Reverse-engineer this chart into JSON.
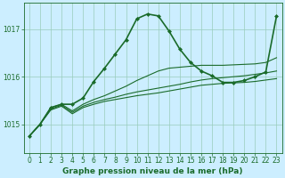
{
  "bg_color": "#cceeff",
  "grid_color": "#99ccbb",
  "line_color": "#1a6b2a",
  "xlabel": "Graphe pression niveau de la mer (hPa)",
  "xlabel_fontsize": 6.5,
  "tick_fontsize": 5.5,
  "xlim": [
    -0.5,
    23.5
  ],
  "ylim": [
    1014.4,
    1017.55
  ],
  "yticks": [
    1015,
    1016,
    1017
  ],
  "xticks": [
    0,
    1,
    2,
    3,
    4,
    5,
    6,
    7,
    8,
    9,
    10,
    11,
    12,
    13,
    14,
    15,
    16,
    17,
    18,
    19,
    20,
    21,
    22,
    23
  ],
  "series": [
    {
      "x": [
        0,
        1,
        2,
        3,
        4,
        5,
        6,
        7,
        8,
        9,
        10,
        11,
        12,
        13,
        14,
        15,
        16,
        17,
        18,
        19,
        20,
        21,
        22,
        23
      ],
      "y": [
        1014.75,
        1015.0,
        1015.3,
        1015.38,
        1015.22,
        1015.35,
        1015.42,
        1015.48,
        1015.52,
        1015.56,
        1015.6,
        1015.63,
        1015.66,
        1015.7,
        1015.74,
        1015.78,
        1015.82,
        1015.84,
        1015.86,
        1015.87,
        1015.88,
        1015.9,
        1015.93,
        1015.96
      ],
      "lw": 0.8,
      "marker": null
    },
    {
      "x": [
        0,
        1,
        2,
        3,
        4,
        5,
        6,
        7,
        8,
        9,
        10,
        11,
        12,
        13,
        14,
        15,
        16,
        17,
        18,
        19,
        20,
        21,
        22,
        23
      ],
      "y": [
        1014.75,
        1015.0,
        1015.32,
        1015.4,
        1015.25,
        1015.38,
        1015.46,
        1015.52,
        1015.57,
        1015.63,
        1015.68,
        1015.72,
        1015.76,
        1015.8,
        1015.84,
        1015.89,
        1015.93,
        1015.96,
        1015.98,
        1016.0,
        1016.02,
        1016.05,
        1016.08,
        1016.12
      ],
      "lw": 0.8,
      "marker": null
    },
    {
      "x": [
        0,
        1,
        2,
        3,
        4,
        5,
        6,
        7,
        8,
        9,
        10,
        11,
        12,
        13,
        14,
        15,
        16,
        17,
        18,
        19,
        20,
        21,
        22,
        23
      ],
      "y": [
        1014.75,
        1015.0,
        1015.35,
        1015.42,
        1015.28,
        1015.42,
        1015.52,
        1015.6,
        1015.7,
        1015.8,
        1015.92,
        1016.02,
        1016.12,
        1016.18,
        1016.2,
        1016.22,
        1016.24,
        1016.24,
        1016.24,
        1016.25,
        1016.26,
        1016.27,
        1016.3,
        1016.4
      ],
      "lw": 0.8,
      "marker": null
    },
    {
      "x": [
        0,
        1,
        2,
        3,
        4,
        5,
        6,
        7,
        8,
        9,
        10,
        11,
        12,
        13,
        14,
        15,
        16,
        17,
        18,
        19,
        20,
        21,
        22,
        23
      ],
      "y": [
        1014.75,
        1015.0,
        1015.35,
        1015.42,
        1015.42,
        1015.55,
        1015.9,
        1016.18,
        1016.48,
        1016.78,
        1017.22,
        1017.32,
        1017.28,
        1016.96,
        1016.58,
        1016.3,
        1016.12,
        1016.02,
        1015.88,
        1015.88,
        1015.92,
        1016.0,
        1016.1,
        1017.28
      ],
      "lw": 1.2,
      "marker": "D",
      "markersize": 2.0
    }
  ]
}
